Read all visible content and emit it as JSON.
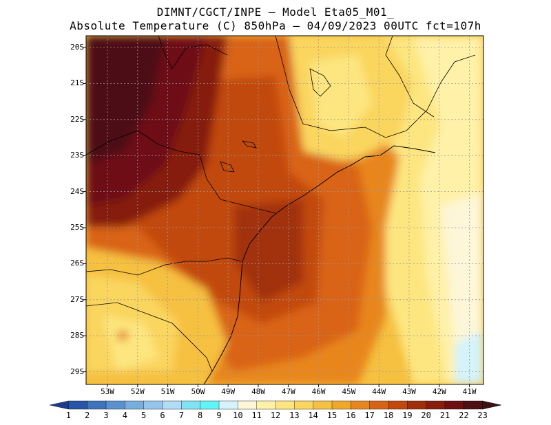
{
  "header": {
    "line1": "DIMNT/CGCT/INPE –  Model Eta05_M01_",
    "line2": "Absolute Temperature (C) 850hPa –  04/09/2023 00UTC fct=107h"
  },
  "map": {
    "lat_labels": [
      "20S",
      "21S",
      "22S",
      "23S",
      "24S",
      "25S",
      "26S",
      "27S",
      "28S",
      "29S"
    ],
    "lon_labels": [
      "53W",
      "52W",
      "51W",
      "50W",
      "49W",
      "48W",
      "47W",
      "46W",
      "45W",
      "44W",
      "43W",
      "42W",
      "41W"
    ],
    "lon_range": [
      -53.7,
      -40.5
    ],
    "lat_range": [
      -19.8,
      -29.4
    ]
  },
  "colorbar": {
    "labels": [
      "1",
      "2",
      "3",
      "4",
      "5",
      "6",
      "7",
      "8",
      "9",
      "10",
      "11",
      "12",
      "13",
      "14",
      "15",
      "16",
      "17",
      "18",
      "19",
      "20",
      "21",
      "22",
      "23"
    ],
    "colors": [
      "#1e3c8c",
      "#2856a6",
      "#3d74bd",
      "#5a92d0",
      "#78aede",
      "#94c6ec",
      "#b0dcf6",
      "#7fe3f5",
      "#5ef5f7",
      "#d4f3fb",
      "#fdf6d8",
      "#fff1a8",
      "#fde680",
      "#fad65e",
      "#f6c040",
      "#f0a828",
      "#e8861e",
      "#d96314",
      "#c2480c",
      "#a1300a",
      "#861e0b",
      "#6e0f12",
      "#4e1014",
      "#3c1014"
    ]
  }
}
